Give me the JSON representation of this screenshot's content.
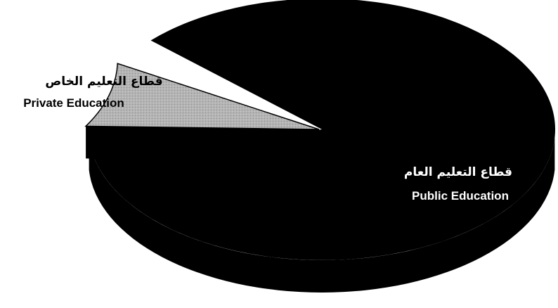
{
  "chart_data": {
    "type": "pie",
    "style": "3d-exploded",
    "slices": [
      {
        "label_ar": "قطاع التعليم العام",
        "label_en": "Public Education",
        "value": 92,
        "color": "#000000",
        "label_color": "#ffffff"
      },
      {
        "label_ar": "قطاع التعليم الخاص",
        "label_en": "Private Education",
        "value": 8,
        "color": "#b4b4b4",
        "label_color": "#000000"
      }
    ],
    "title": "",
    "legend": "none"
  }
}
